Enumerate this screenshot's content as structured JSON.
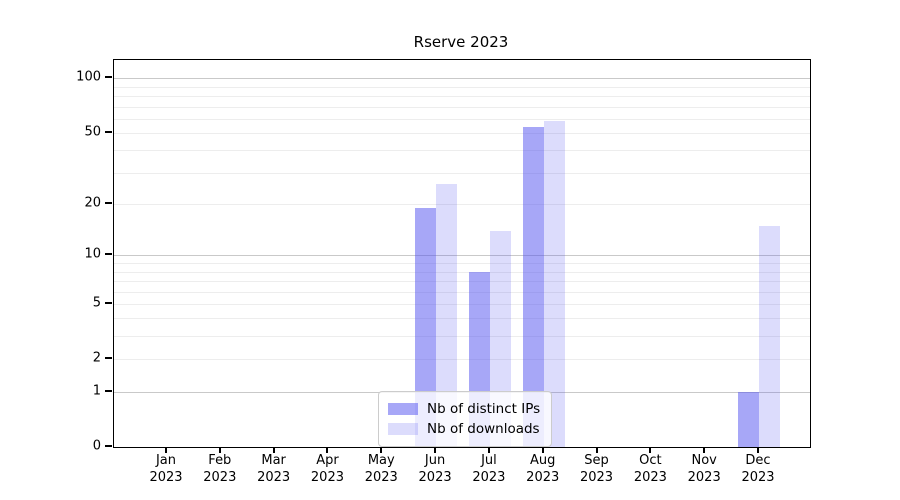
{
  "chart_data": {
    "type": "bar",
    "title": "Rserve 2023",
    "categories": [
      "Jan 2023",
      "Feb 2023",
      "Mar 2023",
      "Apr 2023",
      "May 2023",
      "Jun 2023",
      "Jul 2023",
      "Aug 2023",
      "Sep 2023",
      "Oct 2023",
      "Nov 2023",
      "Dec 2023"
    ],
    "month_labels": [
      {
        "month": "Jan",
        "year": "2023"
      },
      {
        "month": "Feb",
        "year": "2023"
      },
      {
        "month": "Mar",
        "year": "2023"
      },
      {
        "month": "Apr",
        "year": "2023"
      },
      {
        "month": "May",
        "year": "2023"
      },
      {
        "month": "Jun",
        "year": "2023"
      },
      {
        "month": "Jul",
        "year": "2023"
      },
      {
        "month": "Aug",
        "year": "2023"
      },
      {
        "month": "Sep",
        "year": "2023"
      },
      {
        "month": "Oct",
        "year": "2023"
      },
      {
        "month": "Nov",
        "year": "2023"
      },
      {
        "month": "Dec",
        "year": "2023"
      }
    ],
    "series": [
      {
        "name": "Nb of distinct IPs",
        "color": "rgba(80,80,240,0.5)",
        "values": [
          0,
          0,
          0,
          0,
          0,
          19,
          8,
          54,
          0,
          0,
          0,
          1
        ]
      },
      {
        "name": "Nb of downloads",
        "color": "rgba(80,80,240,0.2)",
        "values": [
          0,
          0,
          0,
          0,
          0,
          26,
          14,
          58,
          0,
          0,
          0,
          15
        ]
      }
    ],
    "yscale": "log10(1+x)",
    "ylim": [
      0,
      126
    ],
    "y_tick_labels": [
      "100",
      "50",
      "20",
      "10",
      "5",
      "2",
      "1",
      "0"
    ],
    "y_tick_values": [
      100,
      50,
      20,
      10,
      5,
      2,
      1,
      0
    ],
    "y_minor_gridlines": [
      2,
      3,
      4,
      5,
      6,
      7,
      8,
      9,
      20,
      30,
      40,
      50,
      60,
      70,
      80,
      90
    ],
    "y_major_gridlines": [
      1,
      10,
      100
    ],
    "grid": true,
    "legend_position": "inside-bottom-center",
    "colors": {
      "bar_base": "#5050f0",
      "major_grid": "#c9c9c9",
      "minor_grid": "#ededed",
      "axis": "#000000",
      "legend_border": "#cccccc"
    }
  }
}
